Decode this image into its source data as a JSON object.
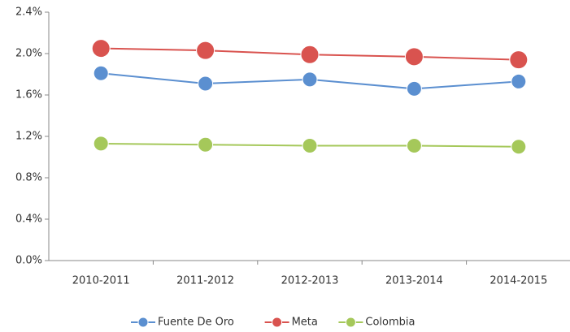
{
  "chart_data": {
    "type": "line",
    "categories": [
      "2010-2011",
      "2011-2012",
      "2012-2013",
      "2013-2014",
      "2014-2015"
    ],
    "series": [
      {
        "name": "Fuente De Oro",
        "color": "#5b8fd0",
        "marker_size": 9,
        "values": [
          1.81,
          1.71,
          1.75,
          1.66,
          1.73
        ]
      },
      {
        "name": "Meta",
        "color": "#d9534f",
        "marker_size": 11,
        "values": [
          2.05,
          2.03,
          1.99,
          1.97,
          1.94
        ]
      },
      {
        "name": "Colombia",
        "color": "#a5c85a",
        "marker_size": 9,
        "values": [
          1.13,
          1.12,
          1.11,
          1.11,
          1.1
        ]
      }
    ],
    "ylim": [
      0,
      2.4
    ],
    "yticks": [
      {
        "value": 0,
        "label": "0.0%"
      },
      {
        "value": 0.4,
        "label": "0.4%"
      },
      {
        "value": 0.8,
        "label": "0.8%"
      },
      {
        "value": 1.2,
        "label": "1.2%"
      },
      {
        "value": 1.6,
        "label": "1.6%"
      },
      {
        "value": 2.0,
        "label": "2.0%"
      },
      {
        "value": 2.4,
        "label": "2.4%"
      }
    ],
    "grid": false,
    "legend": "bottom"
  }
}
